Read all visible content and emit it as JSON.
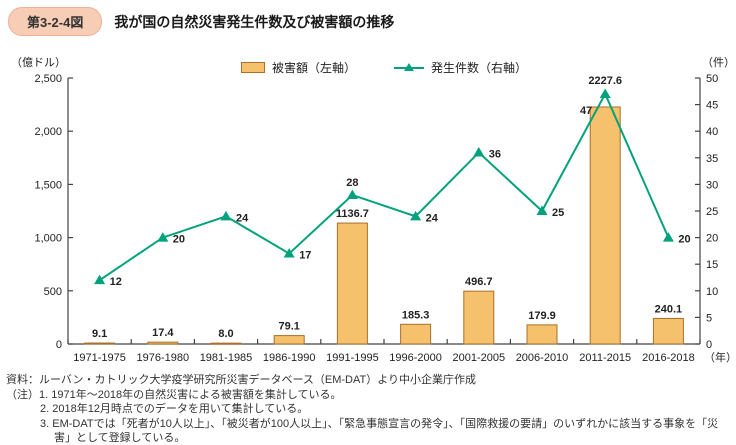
{
  "header": {
    "badge": "第3-2-4図",
    "title": "我が国の自然災害発生件数及び被害額の推移"
  },
  "legend": {
    "bar_label": "被害額（左軸）",
    "line_label": "発生件数（右軸）"
  },
  "colors": {
    "bar_fill": "#F5C16C",
    "bar_border": "#A8702B",
    "line": "#00A27D",
    "badge_bg": "#F8CDB5"
  },
  "chart_data": {
    "type": "bar",
    "subtype": "bar+line combo, dual axis",
    "categories": [
      "1971-1975",
      "1976-1980",
      "1981-1985",
      "1986-1990",
      "1991-1995",
      "1996-2000",
      "2001-2005",
      "2006-2010",
      "2011-2015",
      "2016-2018"
    ],
    "x_unit": "（年）",
    "left_axis": {
      "unit": "（億ドル）",
      "min": 0,
      "max": 2500,
      "step": 500,
      "tick_labels": [
        "0",
        "500",
        "1,000",
        "1,500",
        "2,000",
        "2,500"
      ]
    },
    "right_axis": {
      "unit": "（件）",
      "min": 0,
      "max": 50,
      "step": 5
    },
    "grid": false,
    "legend_position": "top",
    "series": [
      {
        "name": "被害額（左軸）",
        "type": "bar",
        "axis": "left",
        "values": [
          9.1,
          17.4,
          8.0,
          79.1,
          1136.7,
          185.3,
          496.7,
          179.9,
          2227.6,
          240.1
        ],
        "labels": [
          "9.1",
          "17.4",
          "8.0",
          "79.1",
          "1136.7",
          "185.3",
          "496.7",
          "179.9",
          "2227.6",
          "240.1"
        ],
        "color": "#F5C16C",
        "border": "#A8702B"
      },
      {
        "name": "発生件数（右軸）",
        "type": "line",
        "axis": "right",
        "values": [
          12,
          20,
          24,
          17,
          28,
          24,
          36,
          25,
          47,
          20
        ],
        "labels": [
          "12",
          "20",
          "24",
          "17",
          "28",
          "24",
          "36",
          "25",
          "47",
          "20"
        ],
        "label_side": [
          "right",
          "right",
          "right",
          "right",
          "top",
          "right",
          "right",
          "right",
          "left",
          "right"
        ],
        "color": "#00A27D"
      }
    ]
  },
  "footer": {
    "source": "資料：ルーバン・カトリック大学疫学研究所災害データベース（EM-DAT）より中小企業庁作成",
    "note1": "（注）1. 1971年～2018年の自然災害による被害額を集計している。",
    "note2": "2. 2018年12月時点でのデータを用いて集計している。",
    "note3": "3. EM-DATでは「死者が10人以上」、「被災者が100人以上」、「緊急事態宣言の発令」、「国際救援の要請」のいずれかに該当する事象を「災害」として登録している。"
  }
}
